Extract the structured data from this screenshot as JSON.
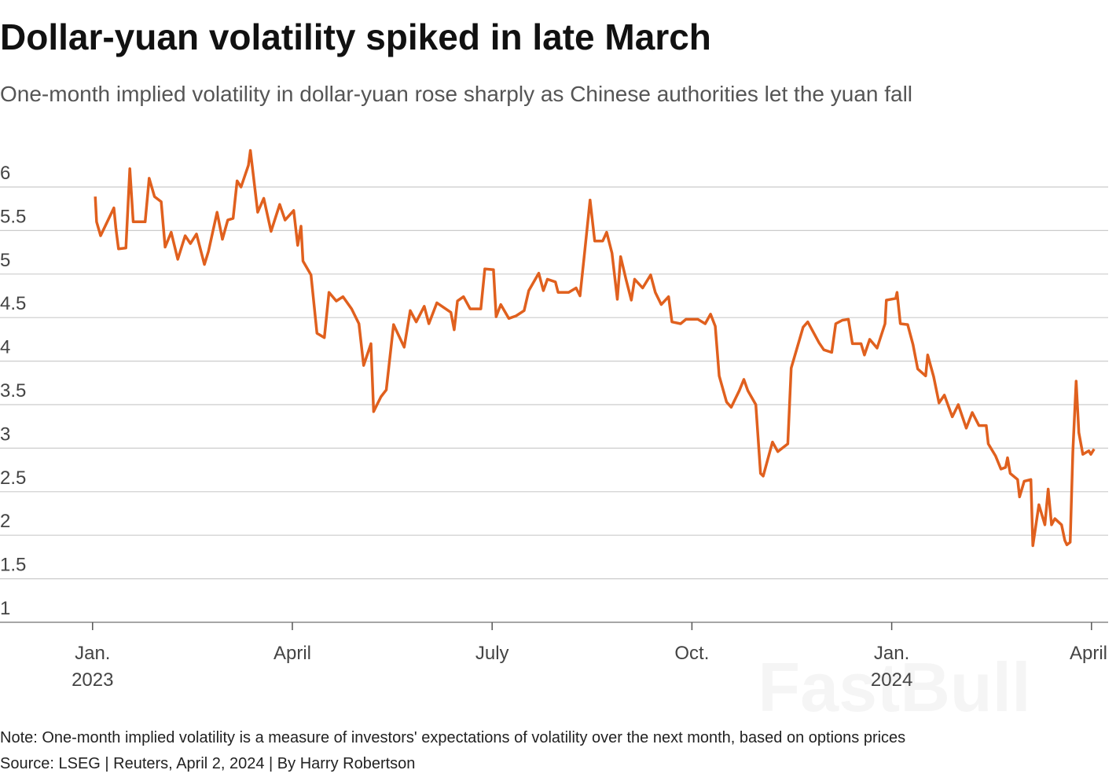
{
  "title": "Dollar-yuan volatility spiked in late March",
  "subtitle": "One-month implied volatility in dollar-yuan rose sharply as Chinese authorities let the yuan fall",
  "note": "Note: One-month implied volatility is a measure of investors' expectations of volatility over the next month, based on options prices",
  "source": "Source: LSEG | Reuters, April 2, 2024 | By Harry Robertson",
  "watermark": "FastBull",
  "chart_data": {
    "type": "line",
    "color": "#e0601e",
    "grid": true,
    "xlim": [
      -1.39,
      15.25
    ],
    "xticks": [
      {
        "value": 0,
        "label": "Jan. 2023"
      },
      {
        "value": 3,
        "label": "April"
      },
      {
        "value": 6,
        "label": "July"
      },
      {
        "value": 9,
        "label": "Oct."
      },
      {
        "value": 12,
        "label": "Jan. 2024"
      },
      {
        "value": 15,
        "label": "April"
      }
    ],
    "ylim": [
      1,
      6.5
    ],
    "yticks": [
      1,
      1.5,
      2,
      2.5,
      3,
      3.5,
      4,
      4.5,
      5,
      5.5,
      6
    ],
    "x": [
      0.04,
      0.06,
      0.12,
      0.32,
      0.35,
      0.39,
      0.5,
      0.56,
      0.61,
      0.79,
      0.85,
      0.93,
      1.03,
      1.09,
      1.18,
      1.28,
      1.39,
      1.47,
      1.56,
      1.68,
      1.74,
      1.87,
      1.95,
      2.03,
      2.11,
      2.17,
      2.23,
      2.34,
      2.37,
      2.48,
      2.57,
      2.68,
      2.81,
      2.89,
      3.02,
      3.08,
      3.13,
      3.16,
      3.28,
      3.37,
      3.48,
      3.55,
      3.66,
      3.76,
      3.89,
      4.0,
      4.07,
      4.18,
      4.22,
      4.33,
      4.41,
      4.52,
      4.68,
      4.77,
      4.86,
      4.98,
      5.05,
      5.17,
      5.38,
      5.43,
      5.48,
      5.57,
      5.67,
      5.83,
      5.89,
      6.02,
      6.06,
      6.13,
      6.25,
      6.36,
      6.48,
      6.55,
      6.7,
      6.77,
      6.83,
      6.95,
      6.99,
      7.15,
      7.26,
      7.32,
      7.39,
      7.47,
      7.54,
      7.66,
      7.72,
      7.8,
      7.88,
      7.93,
      8.01,
      8.09,
      8.14,
      8.26,
      8.38,
      8.45,
      8.54,
      8.65,
      8.7,
      8.83,
      8.91,
      9.09,
      9.2,
      9.28,
      9.35,
      9.41,
      9.52,
      9.59,
      9.71,
      9.78,
      9.84,
      9.96,
      10.03,
      10.07,
      10.21,
      10.29,
      10.44,
      10.49,
      10.59,
      10.67,
      10.74,
      10.91,
      10.98,
      11.1,
      11.16,
      11.26,
      11.35,
      11.41,
      11.54,
      11.59,
      11.67,
      11.78,
      11.9,
      11.92,
      12.06,
      12.08,
      12.13,
      12.24,
      12.32,
      12.39,
      12.51,
      12.54,
      12.63,
      12.71,
      12.79,
      12.91,
      13.0,
      13.12,
      13.21,
      13.31,
      13.42,
      13.45,
      13.56,
      13.64,
      13.71,
      13.74,
      13.78,
      13.89,
      13.92,
      13.99,
      14.09,
      14.12,
      14.21,
      14.3,
      14.35,
      14.4,
      14.45,
      14.55,
      14.6,
      14.63,
      14.68,
      14.72,
      14.77,
      14.81,
      14.87,
      14.96,
      14.99,
      15.04
    ],
    "values": [
      5.89,
      5.6,
      5.44,
      5.76,
      5.53,
      5.29,
      5.3,
      6.21,
      5.6,
      5.6,
      6.1,
      5.89,
      5.83,
      5.31,
      5.48,
      5.17,
      5.44,
      5.35,
      5.46,
      5.11,
      5.26,
      5.71,
      5.4,
      5.62,
      5.64,
      6.07,
      6.0,
      6.25,
      6.42,
      5.71,
      5.87,
      5.49,
      5.8,
      5.62,
      5.73,
      5.33,
      5.55,
      5.15,
      4.99,
      4.32,
      4.27,
      4.79,
      4.69,
      4.74,
      4.6,
      4.43,
      3.95,
      4.2,
      3.42,
      3.59,
      3.67,
      4.42,
      4.16,
      4.58,
      4.45,
      4.63,
      4.43,
      4.67,
      4.56,
      4.36,
      4.69,
      4.74,
      4.6,
      4.6,
      5.06,
      5.05,
      4.51,
      4.65,
      4.49,
      4.52,
      4.58,
      4.81,
      5.01,
      4.81,
      4.94,
      4.91,
      4.79,
      4.79,
      4.84,
      4.75,
      5.26,
      5.85,
      5.38,
      5.38,
      5.48,
      5.24,
      4.71,
      5.2,
      4.94,
      4.7,
      4.94,
      4.84,
      4.99,
      4.79,
      4.65,
      4.74,
      4.45,
      4.43,
      4.48,
      4.48,
      4.43,
      4.54,
      4.4,
      3.83,
      3.53,
      3.47,
      3.66,
      3.79,
      3.66,
      3.5,
      2.71,
      2.68,
      3.07,
      2.96,
      3.05,
      3.92,
      4.18,
      4.39,
      4.45,
      4.21,
      4.13,
      4.1,
      4.43,
      4.47,
      4.48,
      4.2,
      4.2,
      4.07,
      4.25,
      4.15,
      4.43,
      4.7,
      4.72,
      4.79,
      4.43,
      4.42,
      4.19,
      3.91,
      3.83,
      4.07,
      3.82,
      3.52,
      3.61,
      3.36,
      3.5,
      3.23,
      3.41,
      3.26,
      3.26,
      3.05,
      2.91,
      2.76,
      2.78,
      2.89,
      2.71,
      2.64,
      2.44,
      2.62,
      2.64,
      1.88,
      2.35,
      2.12,
      2.53,
      2.12,
      2.19,
      2.12,
      1.94,
      1.89,
      1.92,
      2.96,
      3.77,
      3.18,
      2.93,
      2.97,
      2.93,
      2.99
    ]
  }
}
